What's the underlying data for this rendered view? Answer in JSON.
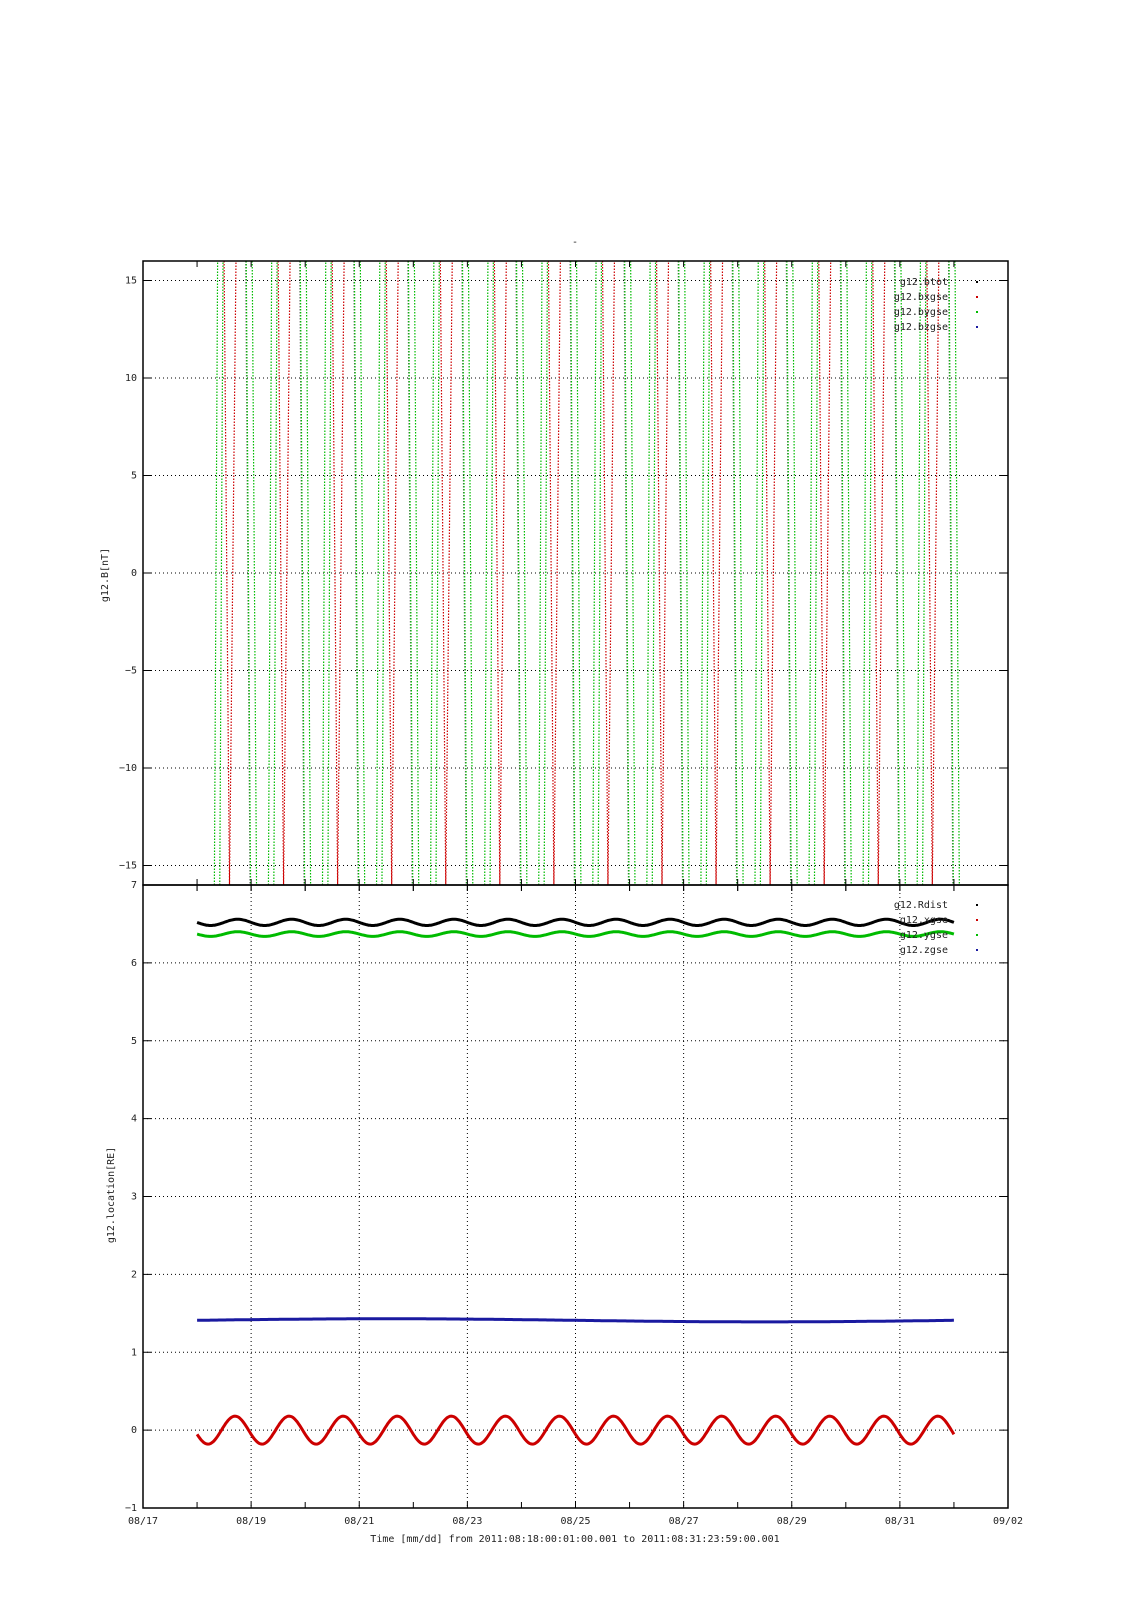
{
  "figure": {
    "top_label": "-",
    "xlabel": "Time [mm/dd]  from 2011:08:18:00:01:00.001  to  2011:08:31:23:59:00.001"
  },
  "chart_data": [
    {
      "type": "line",
      "ylabel": "g12.B[nT]",
      "ylim": [
        -16,
        16
      ],
      "yticks": [
        15,
        10,
        5,
        0,
        -5,
        -10,
        -15
      ],
      "ytick_labels": [
        "15",
        "10",
        "5",
        "0",
        "−5",
        "−10",
        "−15"
      ],
      "grid": true,
      "legend_placement": "top-right",
      "series": [
        {
          "name": "g12.btot",
          "color": "#000000"
        },
        {
          "name": "g12.bxgse",
          "color": "#cc0000"
        },
        {
          "name": "g12.bygse",
          "color": "#00bb00"
        },
        {
          "name": "g12.bzgse",
          "color": "#1a1aa0"
        }
      ],
      "description_values": {
        "red_min_dates": [
          "08/18.6",
          "08/19.6",
          "08/20.6",
          "08/21.6",
          "08/22.6",
          "08/23.6",
          "08/24.6",
          "08/25.6",
          "08/26.6",
          "08/27.6",
          "08/28.6",
          "08/29.6",
          "08/30.6",
          "08/31.6"
        ]
      }
    },
    {
      "type": "line",
      "ylabel": "g12.location[RE]",
      "ylim": [
        -1,
        7
      ],
      "yticks": [
        7,
        6,
        5,
        4,
        3,
        2,
        1,
        0,
        -1
      ],
      "ytick_labels": [
        "7",
        "6",
        "5",
        "4",
        "3",
        "2",
        "1",
        "0",
        "−1"
      ],
      "xlim": [
        "08/17",
        "09/02"
      ],
      "xticks": [
        "08/17",
        "08/19",
        "08/21",
        "08/23",
        "08/25",
        "08/27",
        "08/29",
        "08/31",
        "09/02"
      ],
      "grid": true,
      "legend_placement": "top-right",
      "series": [
        {
          "name": "g12.Rdist",
          "color": "#000000",
          "mean": 6.52,
          "amplitude": 0.04,
          "period_days": 1
        },
        {
          "name": "g12.xgse",
          "color": "#cc0000",
          "mean": 0.0,
          "amplitude": 0.18,
          "period_days": 1
        },
        {
          "name": "g12.ygse",
          "color": "#00bb00",
          "mean": 6.37,
          "amplitude": 0.03,
          "period_days": 1
        },
        {
          "name": "g12.zgse",
          "color": "#1a1aa0",
          "mean": 1.41,
          "amplitude": 0.02,
          "period_days": 14
        }
      ],
      "x_start_day": 18.0,
      "x_end_day": 32.0
    }
  ]
}
